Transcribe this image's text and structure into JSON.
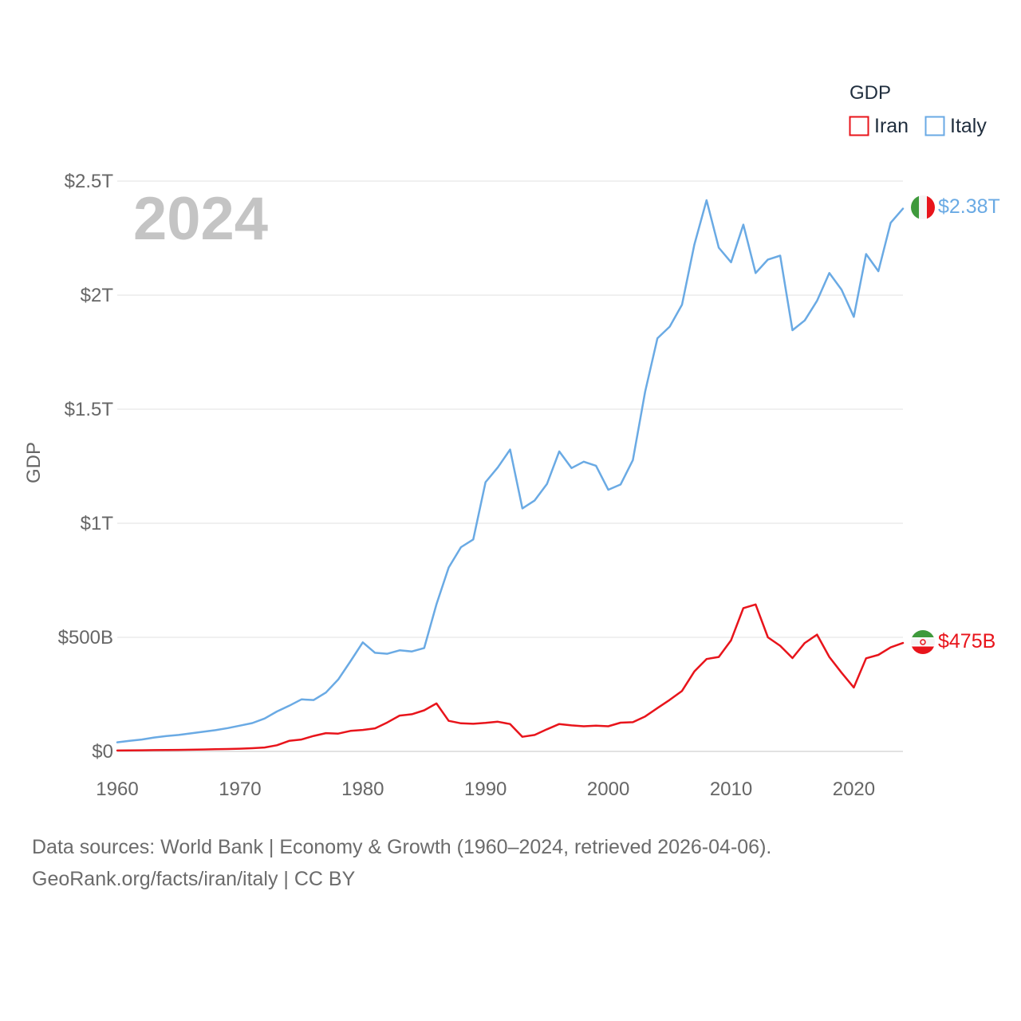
{
  "chart_data": {
    "type": "line",
    "title": "GDP",
    "ylabel": "GDP",
    "xlabel": "",
    "year_label": "2024",
    "xlim": [
      1960,
      2024
    ],
    "ylim": [
      0,
      2500
    ],
    "y_units": "billions USD",
    "x_ticks": [
      1960,
      1970,
      1980,
      1990,
      2000,
      2010,
      2020
    ],
    "y_ticks": [
      {
        "value": 0,
        "label": "$0"
      },
      {
        "value": 500,
        "label": "$500B"
      },
      {
        "value": 1000,
        "label": "$1T"
      },
      {
        "value": 1500,
        "label": "$1.5T"
      },
      {
        "value": 2000,
        "label": "$2T"
      },
      {
        "value": 2500,
        "label": "$2.5T"
      }
    ],
    "legend": {
      "title": "GDP",
      "position": "top-right"
    },
    "x": [
      1960,
      1961,
      1962,
      1963,
      1964,
      1965,
      1966,
      1967,
      1968,
      1969,
      1970,
      1971,
      1972,
      1973,
      1974,
      1975,
      1976,
      1977,
      1978,
      1979,
      1980,
      1981,
      1982,
      1983,
      1984,
      1985,
      1986,
      1987,
      1988,
      1989,
      1990,
      1991,
      1992,
      1993,
      1994,
      1995,
      1996,
      1997,
      1998,
      1999,
      2000,
      2001,
      2002,
      2003,
      2004,
      2005,
      2006,
      2007,
      2008,
      2009,
      2010,
      2011,
      2012,
      2013,
      2014,
      2015,
      2016,
      2017,
      2018,
      2019,
      2020,
      2021,
      2022,
      2023,
      2024
    ],
    "series": [
      {
        "name": "Iran",
        "color": "#e8141b",
        "end_label": "$475B",
        "flag": "iran-flag-icon",
        "values": [
          4,
          4.5,
          5,
          5.5,
          6,
          6.5,
          7.5,
          8.5,
          9.5,
          10.5,
          12,
          14,
          17,
          27,
          46,
          52,
          68,
          80,
          78,
          90,
          94,
          101,
          127,
          157,
          163,
          180,
          210,
          134,
          123,
          121,
          125,
          130,
          120,
          64,
          72,
          97,
          120,
          114,
          110,
          113,
          110,
          126,
          128,
          153,
          190,
          226,
          265,
          350,
          405,
          414,
          487,
          628,
          644,
          500,
          463,
          409,
          475,
          512,
          414,
          345,
          280,
          408,
          423,
          456,
          475
        ]
      },
      {
        "name": "Italy",
        "color": "#6aaae4",
        "end_label": "$2.38T",
        "flag": "italy-flag-icon",
        "values": [
          40,
          46,
          52,
          61,
          67,
          72,
          79,
          86,
          93,
          102,
          113,
          124,
          144,
          175,
          200,
          228,
          225,
          258,
          315,
          395,
          478,
          432,
          428,
          443,
          438,
          453,
          645,
          806,
          895,
          929,
          1180,
          1245,
          1323,
          1065,
          1100,
          1172,
          1315,
          1242,
          1270,
          1252,
          1147,
          1170,
          1277,
          1577,
          1811,
          1862,
          1958,
          2220,
          2416,
          2208,
          2144,
          2309,
          2097,
          2156,
          2173,
          1846,
          1889,
          1975,
          2097,
          2024,
          1905,
          2180,
          2105,
          2317,
          2379
        ]
      }
    ]
  },
  "footer": {
    "line1": "Data sources: World Bank | Economy & Growth (1960–2024, retrieved 2026-04-06).",
    "line2": "GeoRank.org/facts/iran/italy | CC BY"
  }
}
